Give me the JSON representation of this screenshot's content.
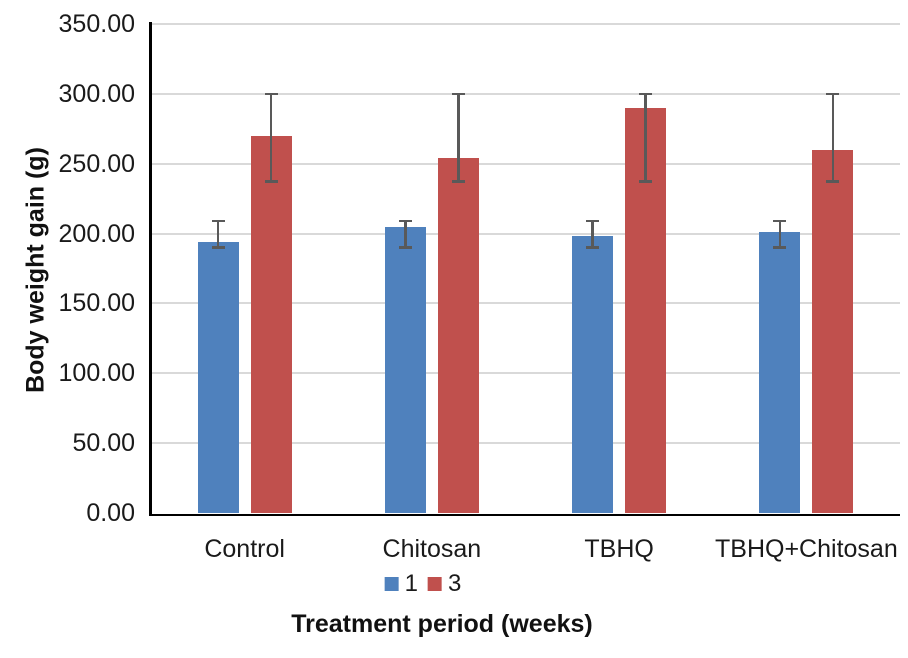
{
  "chart_data": {
    "type": "bar",
    "title": "",
    "categories": [
      "Control",
      "Chitosan",
      "TBHQ",
      "TBHQ+Chitosan"
    ],
    "series": [
      {
        "name": "1",
        "color": "#4F81BD",
        "values": [
          194,
          205,
          198,
          201
        ],
        "error_low": [
          190,
          190,
          190,
          190
        ],
        "error_high": [
          209,
          209,
          209,
          209
        ]
      },
      {
        "name": "3",
        "color": "#C0504D",
        "values": [
          270,
          254,
          290,
          260
        ],
        "error_low": [
          237,
          237,
          237,
          237
        ],
        "error_high": [
          300,
          300,
          300,
          300
        ]
      }
    ],
    "xlabel": "Treatment period (weeks)",
    "ylabel": "Body weight gain (g)",
    "ylim": [
      0,
      350
    ],
    "ytick_step": 50,
    "ytick_labels": [
      "0.00",
      "50.00",
      "100.00",
      "150.00",
      "200.00",
      "250.00",
      "300.00",
      "350.00"
    ],
    "grid": true,
    "legend_position": "bottom-center",
    "colors": {
      "gridline": "#D9D9D9",
      "axis": "#000000",
      "error_bar": "#595959",
      "text": "#1a1a1a",
      "background": "#FFFFFF"
    }
  }
}
